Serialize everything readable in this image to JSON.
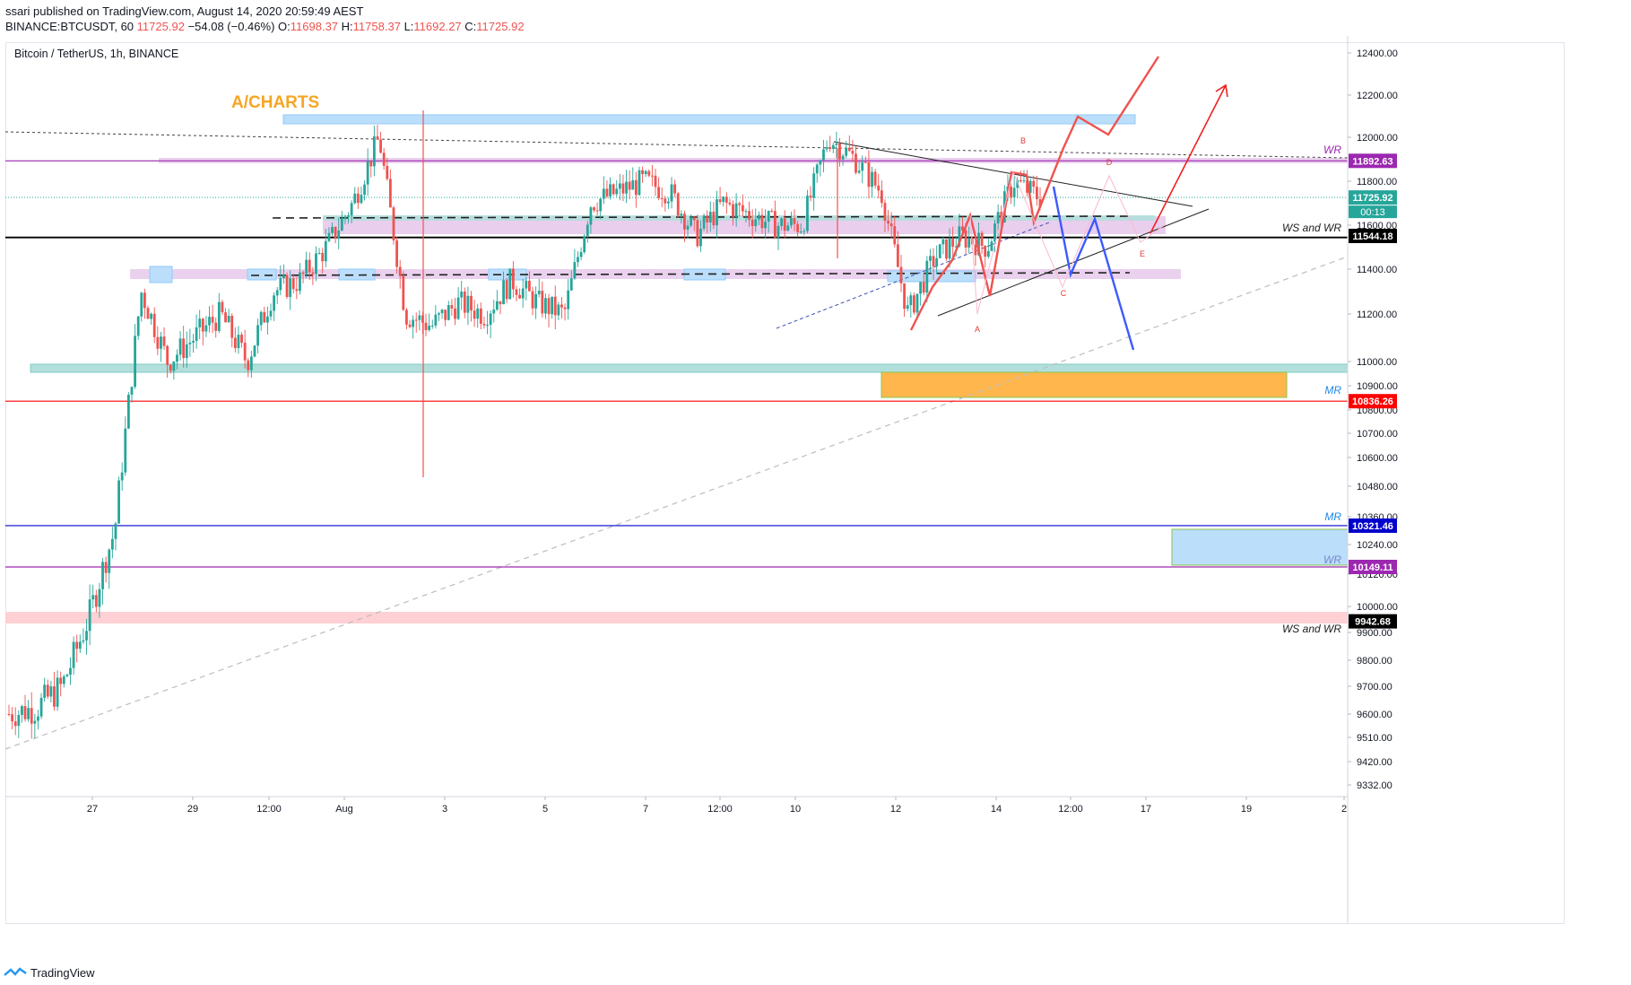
{
  "header": {
    "published_line": "ssari published on TradingView.com, August 14, 2020 20:59:49 AEST",
    "symbol_line": "BINANCE:BTCUSDT, 60",
    "last_price": "11725.92",
    "change": "−54.08 (−0.46%)",
    "o_label": "O:",
    "o_value": "11698.37",
    "h_label": "H:",
    "h_value": "11758.37",
    "l_label": "L:",
    "l_value": "11692.27",
    "c_label": "C:",
    "c_value": "11725.92"
  },
  "legend": {
    "title": "Bitcoin / TetherUS, 1h, BINANCE"
  },
  "brand": {
    "text": "A/CHARTS"
  },
  "footer": {
    "logo_text": "TradingView",
    "logo_icon": "tradingview-logo-icon"
  },
  "colors": {
    "up": "#26a69a",
    "down": "#ef5350",
    "red_line": "#ff0000",
    "blue_line": "#0000cc",
    "purple_line": "#9c27b0",
    "orange_box": "#ffa726",
    "label_dark": "#131722"
  },
  "chart_data": {
    "type": "line",
    "title": "Bitcoin / TetherUS, 1h, BINANCE",
    "x_tick_labels": [
      "27",
      "29",
      "12:00",
      "Aug",
      "3",
      "5",
      "7",
      "12:00",
      "10",
      "12",
      "14",
      "12:00",
      "17",
      "19",
      "2"
    ],
    "y_tick_labels": [
      "12400.00",
      "12200.00",
      "12000.00",
      "11800.00",
      "11600.00",
      "11400.00",
      "11200.00",
      "11000.00",
      "10900.00",
      "10800.00",
      "10700.00",
      "10600.00",
      "10480.00",
      "10360.00",
      "10240.00",
      "10120.00",
      "10000.00",
      "9900.00",
      "9800.00",
      "9700.00",
      "9600.00",
      "9510.00",
      "9420.00",
      "9332.00"
    ],
    "y_ticks": [
      12400,
      12200,
      12000,
      11800,
      11600,
      11400,
      11200,
      11000,
      10900,
      10800,
      10700,
      10600,
      10480,
      10360,
      10240,
      10120,
      10000,
      9900,
      9800,
      9700,
      9600,
      9510,
      9420,
      9332
    ],
    "series": [
      {
        "x": [
          "Jul 26 00:00",
          "Jul 26 12:00",
          "Jul 27 00:00",
          "Jul 27 12:00",
          "Jul 28 00:00",
          "Jul 28 12:00",
          "Jul 29 00:00",
          "Jul 29 12:00",
          "Jul 30 00:00",
          "Jul 30 12:00",
          "Jul 31 00:00",
          "Jul 31 12:00",
          "Aug 1 00:00",
          "Aug 1 12:00",
          "Aug 2 00:00",
          "Aug 2 12:00",
          "Aug 3 00:00",
          "Aug 3 12:00",
          "Aug 4 00:00",
          "Aug 4 12:00",
          "Aug 5 00:00",
          "Aug 5 12:00",
          "Aug 6 00:00",
          "Aug 6 12:00",
          "Aug 7 00:00",
          "Aug 7 12:00",
          "Aug 8 00:00",
          "Aug 8 12:00",
          "Aug 9 00:00",
          "Aug 9 12:00",
          "Aug 10 00:00",
          "Aug 10 12:00",
          "Aug 11 00:00",
          "Aug 11 12:00",
          "Aug 12 00:00",
          "Aug 12 12:00",
          "Aug 13 00:00",
          "Aug 13 12:00",
          "Aug 14 00:00",
          "Aug 14 12:00"
        ],
        "values": [
          9600,
          9620,
          9700,
          9950,
          10300,
          11300,
          11000,
          11100,
          11200,
          11000,
          11300,
          11350,
          11500,
          11700,
          12000,
          11200,
          11150,
          11250,
          11200,
          11350,
          11250,
          11200,
          11700,
          11750,
          11800,
          11750,
          11550,
          11700,
          11650,
          11600,
          11600,
          12000,
          11900,
          11750,
          11200,
          11450,
          11550,
          11500,
          11800,
          11725
        ]
      }
    ],
    "horizontal_levels": [
      {
        "price": 11892.63,
        "label": "11892.63",
        "tag": "WR"
      },
      {
        "price": 11725.92,
        "label": "11725.92",
        "tag": "00:13"
      },
      {
        "price": 11544.18,
        "label": "11544.18",
        "tag": "WS and WR"
      },
      {
        "price": 10836.26,
        "label": "10836.26",
        "tag": "MR"
      },
      {
        "price": 10321.46,
        "label": "10321.46",
        "tag": "MR"
      },
      {
        "price": 10149.11,
        "label": "10149.11",
        "tag": "WR"
      },
      {
        "price": 9942.68,
        "label": "9942.68",
        "tag": "WS and WR"
      }
    ],
    "wave_labels": [
      "A",
      "B",
      "C",
      "D",
      "E"
    ],
    "xlabel": "",
    "ylabel": ""
  }
}
